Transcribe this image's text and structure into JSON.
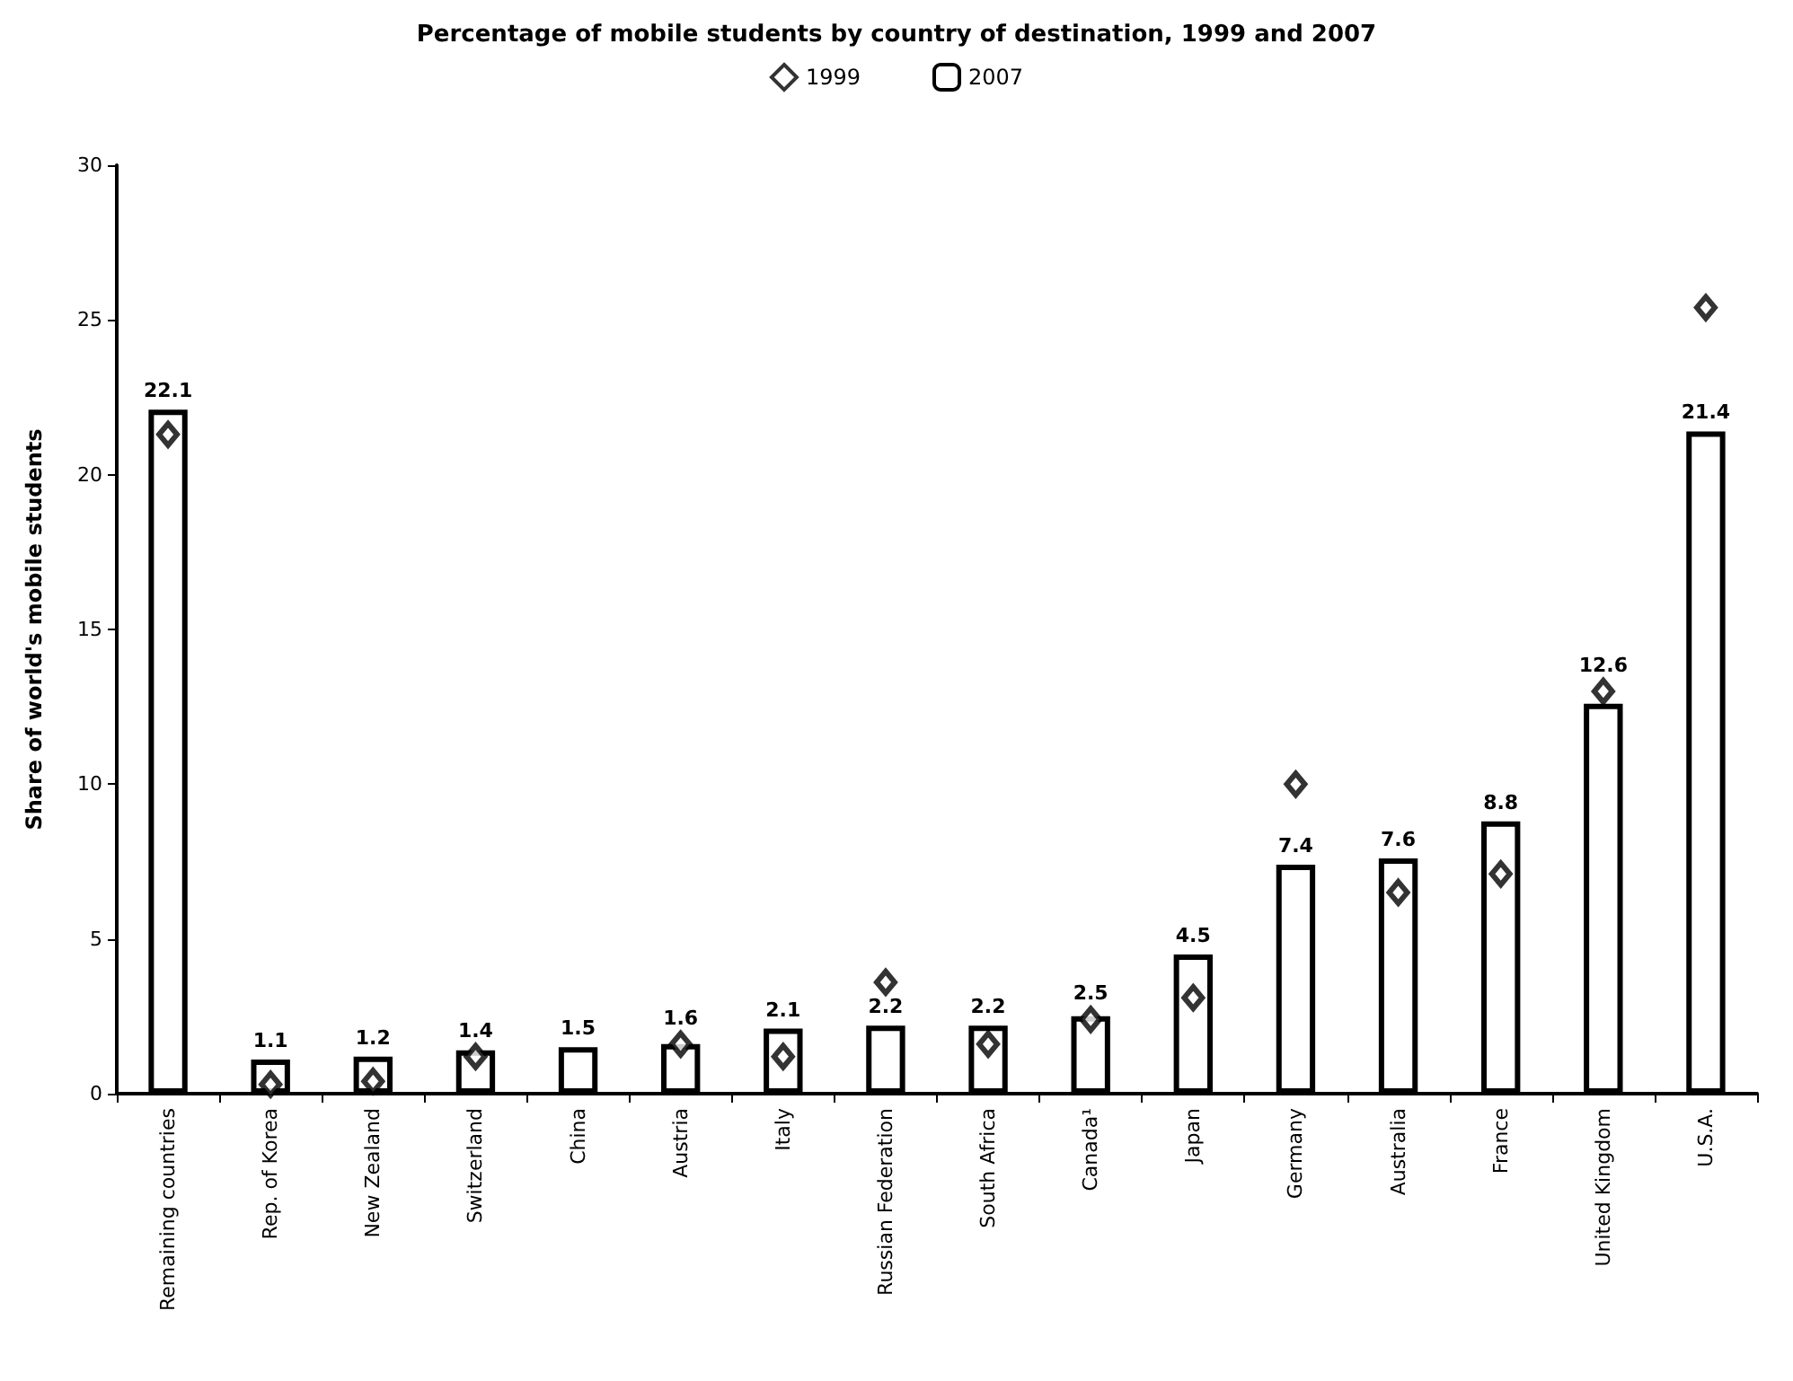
{
  "chart_data": {
    "type": "bar",
    "title": "Percentage of mobile students by country of destination, 1999 and 2007",
    "ylabel": "Share of world's mobile students",
    "categories": [
      "Remaining countries",
      "Rep. of Korea",
      "New Zealand",
      "Switzerland",
      "China",
      "Austria",
      "Italy",
      "Russian Federation",
      "South Africa",
      "Canada¹",
      "Japan",
      "Germany",
      "Australia",
      "France",
      "United Kingdom",
      "U.S.A."
    ],
    "series": [
      {
        "name": "1999",
        "type": "scatter",
        "color": "#000000",
        "marker": "diamond",
        "values": [
          21.3,
          0.3,
          0.4,
          1.2,
          null,
          1.6,
          1.2,
          3.6,
          1.6,
          2.4,
          3.1,
          10.0,
          6.5,
          7.1,
          13.0,
          25.4
        ]
      },
      {
        "name": "2007",
        "color": "#000000",
        "values": [
          22.1,
          1.1,
          1.2,
          1.4,
          1.5,
          1.6,
          2.1,
          2.2,
          2.2,
          2.5,
          4.5,
          7.4,
          7.6,
          8.8,
          12.6,
          21.4
        ],
        "value_labels": [
          "22.1",
          "1.1",
          "1.2",
          "1.4",
          "1.5",
          "1.6",
          "2.1",
          "2.2",
          "2.2",
          "2.5",
          "4.5",
          "7.4",
          "7.6",
          "8.8",
          "12.6",
          "21.4"
        ]
      }
    ],
    "ylim": [
      0,
      30
    ],
    "yticks": [
      0,
      5,
      10,
      15,
      20,
      25,
      30
    ],
    "grid": false,
    "legend": "top"
  }
}
